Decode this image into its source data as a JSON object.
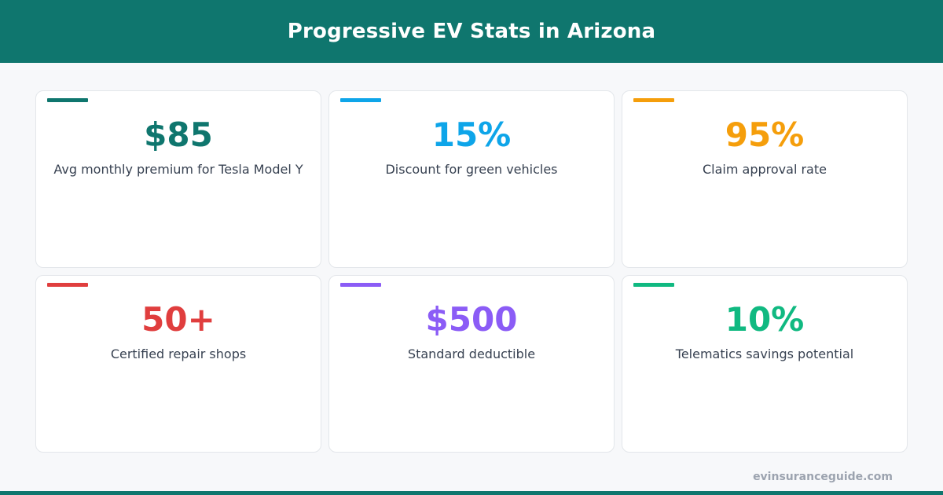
{
  "header": {
    "title": "Progressive EV Stats in Arizona"
  },
  "stats": [
    {
      "value": "$85",
      "label": "Avg monthly premium for Tesla Model Y",
      "color": "#0f766e"
    },
    {
      "value": "15%",
      "label": "Discount for green vehicles",
      "color": "#0ea5e9"
    },
    {
      "value": "95%",
      "label": "Claim approval rate",
      "color": "#f59e0b"
    },
    {
      "value": "50+",
      "label": "Certified repair shops",
      "color": "#e03e3e"
    },
    {
      "value": "$500",
      "label": "Standard deductible",
      "color": "#8b5cf6"
    },
    {
      "value": "10%",
      "label": "Telematics savings potential",
      "color": "#10b981"
    }
  ],
  "footer": {
    "site": "evinsuranceguide.com"
  },
  "colors": {
    "brand": "#0f766e",
    "background": "#f7f8fa",
    "card": "#ffffff"
  }
}
